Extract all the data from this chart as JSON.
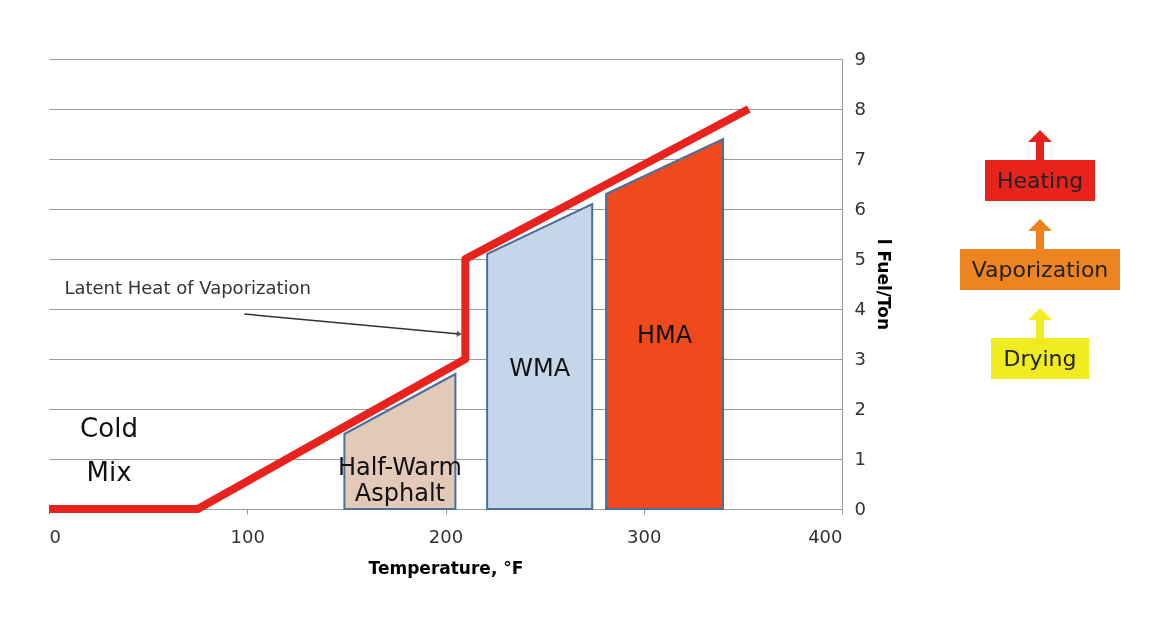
{
  "chart_data": {
    "type": "area",
    "xlabel": "Temperature, °F",
    "ylabel": "l Fuel/Ton",
    "xlim": [
      0,
      400
    ],
    "xticks": [
      0,
      100,
      200,
      300,
      400
    ],
    "ylim": [
      0,
      9
    ],
    "yticks": [
      0,
      1,
      2,
      3,
      4,
      5,
      6,
      7,
      8,
      9
    ],
    "grid": "y",
    "series": [
      {
        "name": "Half-Warm Asphalt",
        "color": "#e3c9b8",
        "x": [
          149,
          205
        ],
        "values": [
          1.5,
          2.7
        ]
      },
      {
        "name": "WMA",
        "color": "#c6d6ea",
        "x": [
          221,
          274
        ],
        "values": [
          5.1,
          6.1
        ]
      },
      {
        "name": "HMA",
        "color": "#ee4a1e",
        "x": [
          281,
          340
        ],
        "values": [
          6.3,
          7.4
        ]
      },
      {
        "type": "line",
        "color": "#e8231e",
        "x": [
          0,
          75,
          210,
          210,
          353
        ],
        "values": [
          0,
          0,
          3,
          5,
          8
        ]
      }
    ],
    "marker": "none",
    "annotations": [
      {
        "text": "Latent Heat of Vaporization",
        "x": 207,
        "y": 3.5
      },
      "Cold Mix",
      "Heating",
      "Vaporization",
      "Drying"
    ]
  }
}
